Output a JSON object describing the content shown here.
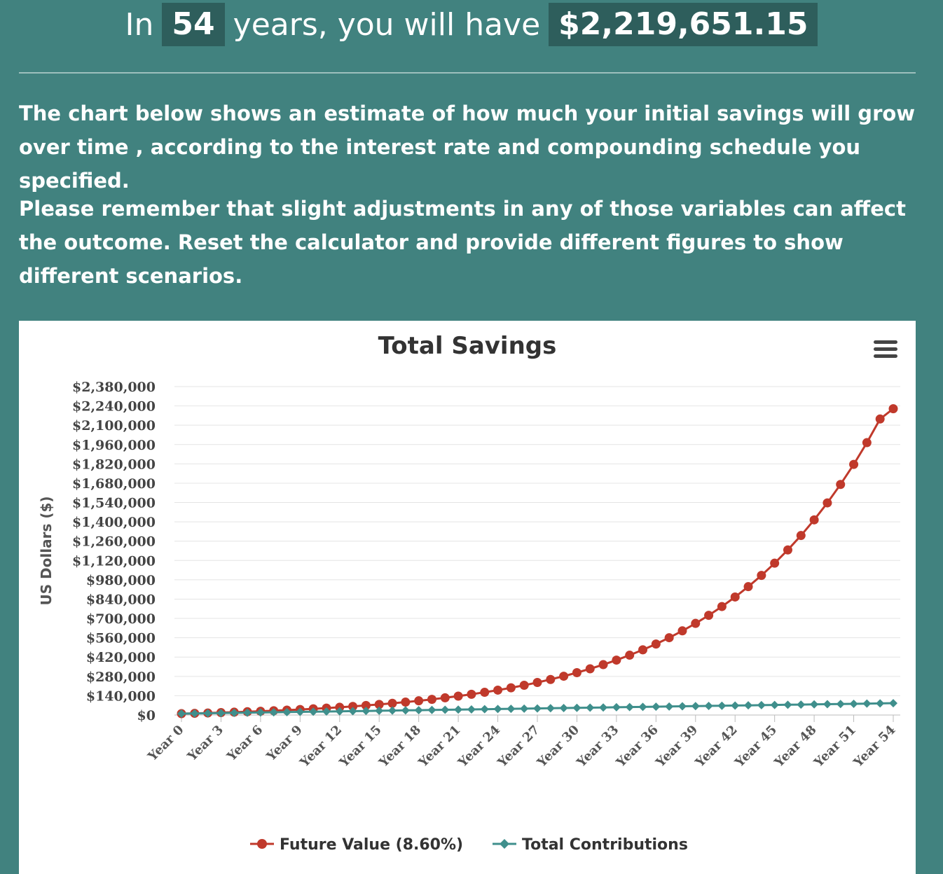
{
  "headline": {
    "prefix": "In",
    "years": "54",
    "middle": "years, you will have",
    "amount": "$2,219,651.15"
  },
  "paragraphs": [
    "The chart below shows an estimate of how much your initial savings will grow over time , according to the interest rate and compounding schedule you specified.",
    "Please remember that slight adjustments in any of those variables can affect the outcome. Reset the calculator and provide different figures to show different scenarios."
  ],
  "menu_icon": "hamburger-menu-icon",
  "chart_data": {
    "type": "line",
    "title": "Total Savings",
    "ylabel": "US Dollars ($)",
    "xlabel": "",
    "ylim": [
      0,
      2380000
    ],
    "y_ticks": [
      "$0",
      "$140,000",
      "$280,000",
      "$420,000",
      "$560,000",
      "$700,000",
      "$840,000",
      "$980,000",
      "$1,120,000",
      "$1,260,000",
      "$1,400,000",
      "$1,540,000",
      "$1,680,000",
      "$1,820,000",
      "$1,960,000",
      "$2,100,000",
      "$2,240,000",
      "$2,380,000"
    ],
    "x_tick_labels": [
      "Year 0",
      "Year 3",
      "Year 6",
      "Year 9",
      "Year 12",
      "Year 15",
      "Year 18",
      "Year 21",
      "Year 24",
      "Year 27",
      "Year 30",
      "Year 33",
      "Year 36",
      "Year 39",
      "Year 42",
      "Year 45",
      "Year 48",
      "Year 51",
      "Year 54"
    ],
    "x": [
      0,
      1,
      2,
      3,
      4,
      5,
      6,
      7,
      8,
      9,
      10,
      11,
      12,
      13,
      14,
      15,
      16,
      17,
      18,
      19,
      20,
      21,
      22,
      23,
      24,
      25,
      26,
      27,
      28,
      29,
      30,
      31,
      32,
      33,
      34,
      35,
      36,
      37,
      38,
      39,
      40,
      41,
      42,
      43,
      44,
      45,
      46,
      47,
      48,
      49,
      50,
      51,
      52,
      53,
      54
    ],
    "grid": true,
    "legend_position": "bottom",
    "series": [
      {
        "name": "Future Value (8.60%)",
        "color": "#c0392b",
        "marker": "circle",
        "values": [
          10000,
          12346,
          14894,
          17661,
          20666,
          23930,
          27475,
          31324,
          35505,
          40045,
          44976,
          50331,
          56146,
          62461,
          69319,
          76767,
          84856,
          93640,
          103180,
          113540,
          124791,
          137010,
          150279,
          164690,
          180340,
          197336,
          215794,
          235840,
          257610,
          281252,
          306927,
          334810,
          365091,
          397977,
          433691,
          472477,
          514597,
          560340,
          610017,
          663966,
          722553,
          786180,
          855278,
          930317,
          1011810,
          1100311,
          1196422,
          1300801,
          1414155,
          1537258,
          1670947,
          1816135,
          1973810,
          2145043,
          2219651
        ]
      },
      {
        "name": "Total Contributions",
        "color": "#3f8f8c",
        "marker": "diamond",
        "values": [
          10000,
          11400,
          12800,
          14200,
          15600,
          17000,
          18400,
          19800,
          21200,
          22600,
          24000,
          25400,
          26800,
          28200,
          29600,
          31000,
          32400,
          33800,
          35200,
          36600,
          38000,
          39400,
          40800,
          42200,
          43600,
          45000,
          46400,
          47800,
          49200,
          50600,
          52000,
          53400,
          54800,
          56200,
          57600,
          59000,
          60400,
          61800,
          63200,
          64600,
          66000,
          67400,
          68800,
          70200,
          71600,
          73000,
          74400,
          75800,
          77200,
          78600,
          80000,
          81400,
          82800,
          84200,
          85600
        ]
      }
    ]
  }
}
